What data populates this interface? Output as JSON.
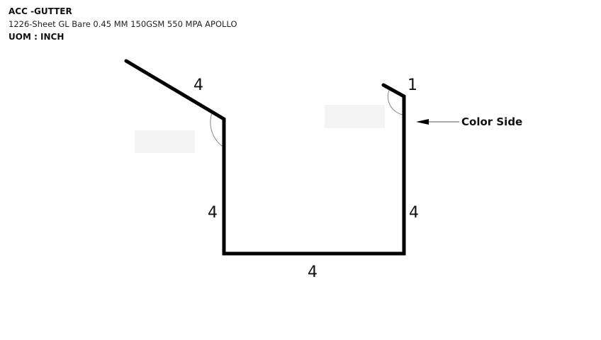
{
  "header": {
    "title": "ACC -GUTTER",
    "spec": "1226-Sheet GL Bare 0.45 MM 150GSM 550 MPA APOLLO",
    "uom": "UOM : INCH"
  },
  "profile": {
    "dimensions": {
      "left_flange": "4",
      "right_lip": "1",
      "left_wall": "4",
      "right_wall": "4",
      "bottom": "4"
    },
    "callout": {
      "label": "Color Side"
    }
  }
}
